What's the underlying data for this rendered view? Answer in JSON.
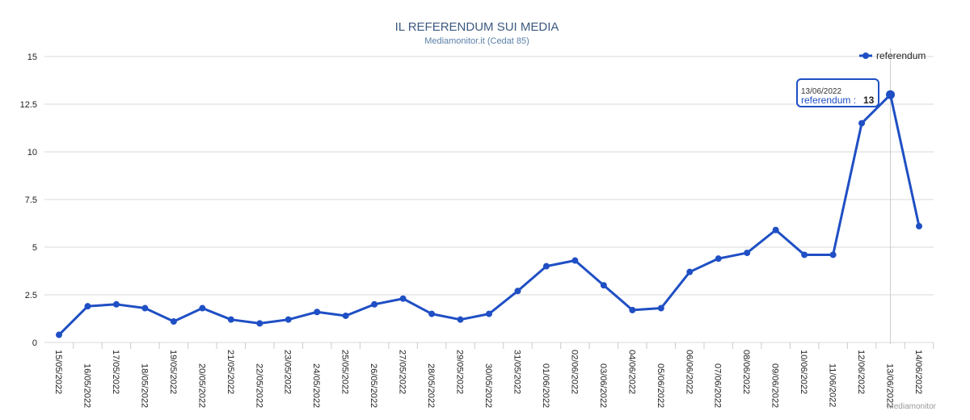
{
  "chart_data": {
    "type": "line",
    "title": "IL REFERENDUM SUI MEDIA",
    "subtitle": "Mediamonitor.it (Cedat 85)",
    "xlabel": "",
    "ylabel": "",
    "ylim": [
      0,
      15
    ],
    "yticks": [
      "0",
      "2.5",
      "5",
      "7.5",
      "10",
      "12.5",
      "15"
    ],
    "grid": true,
    "legend_position": "top-right",
    "categories": [
      "15/05/2022",
      "16/05/2022",
      "17/05/2022",
      "18/05/2022",
      "19/05/2022",
      "20/05/2022",
      "21/05/2022",
      "22/05/2022",
      "23/05/2022",
      "24/05/2022",
      "25/05/2022",
      "26/05/2022",
      "27/05/2022",
      "28/05/2022",
      "29/05/2022",
      "30/05/2022",
      "31/05/2022",
      "01/06/2022",
      "02/06/2022",
      "03/06/2022",
      "04/06/2022",
      "05/06/2022",
      "06/06/2022",
      "07/06/2022",
      "08/06/2022",
      "09/06/2022",
      "10/06/2022",
      "11/06/2022",
      "12/06/2022",
      "13/06/2022",
      "14/06/2022"
    ],
    "series": [
      {
        "name": "referendum",
        "color": "#1f4fc4",
        "values": [
          0.4,
          1.9,
          2.0,
          1.8,
          1.1,
          1.8,
          1.2,
          1.0,
          1.2,
          1.6,
          1.4,
          2.0,
          2.3,
          1.5,
          1.2,
          1.5,
          2.7,
          4.0,
          4.3,
          3.0,
          1.7,
          1.8,
          3.7,
          4.4,
          4.7,
          5.9,
          4.6,
          4.6,
          11.5,
          13,
          6.1
        ]
      }
    ],
    "tooltip": {
      "date": "13/06/2022",
      "series": "referendum :",
      "value": "13"
    },
    "credit": "Mediamonitor"
  }
}
